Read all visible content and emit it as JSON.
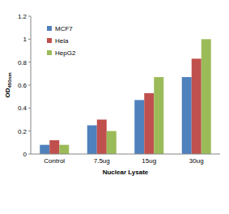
{
  "chart_data": {
    "type": "bar",
    "x_label": "Nuclear Lysate",
    "y_label": "OD450nm",
    "categories": [
      "Control",
      "7.5ug",
      "15ug",
      "30ug"
    ],
    "series": [
      {
        "name": "MCF7",
        "color": "#4f81bd",
        "values": [
          0.08,
          0.25,
          0.47,
          0.67
        ]
      },
      {
        "name": "Hela",
        "color": "#c0504d",
        "values": [
          0.12,
          0.3,
          0.53,
          0.83
        ]
      },
      {
        "name": "HepG2",
        "color": "#9bbb59",
        "values": [
          0.08,
          0.2,
          0.67,
          1.0
        ]
      }
    ],
    "ylim": [
      0,
      1.2
    ],
    "yticks": [
      0,
      0.2,
      0.4,
      0.6,
      0.8,
      1,
      1.2
    ],
    "grid": false,
    "legend": "top-left"
  }
}
